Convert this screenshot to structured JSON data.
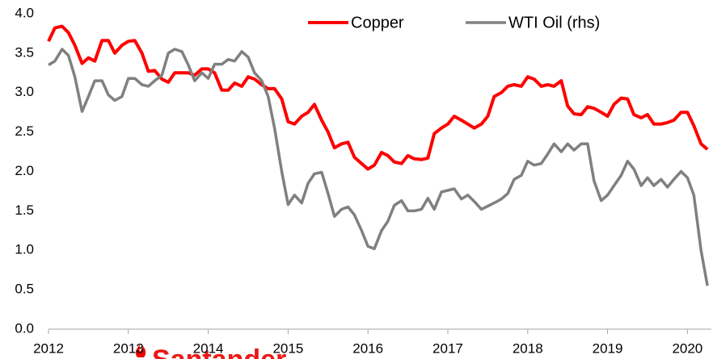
{
  "chart_data": {
    "type": "line",
    "watermark": "Santander",
    "x": [
      2012.0,
      2012.08,
      2012.17,
      2012.25,
      2012.33,
      2012.42,
      2012.5,
      2012.58,
      2012.67,
      2012.75,
      2012.83,
      2012.92,
      2013.0,
      2013.08,
      2013.17,
      2013.25,
      2013.33,
      2013.42,
      2013.5,
      2013.58,
      2013.67,
      2013.75,
      2013.83,
      2013.92,
      2014.0,
      2014.08,
      2014.17,
      2014.25,
      2014.33,
      2014.42,
      2014.5,
      2014.58,
      2014.67,
      2014.75,
      2014.83,
      2014.92,
      2015.0,
      2015.08,
      2015.17,
      2015.25,
      2015.33,
      2015.42,
      2015.5,
      2015.58,
      2015.67,
      2015.75,
      2015.83,
      2015.92,
      2016.0,
      2016.08,
      2016.17,
      2016.25,
      2016.33,
      2016.42,
      2016.5,
      2016.58,
      2016.67,
      2016.75,
      2016.83,
      2016.92,
      2017.0,
      2017.08,
      2017.17,
      2017.25,
      2017.33,
      2017.42,
      2017.5,
      2017.58,
      2017.67,
      2017.75,
      2017.83,
      2017.92,
      2018.0,
      2018.08,
      2018.17,
      2018.25,
      2018.33,
      2018.42,
      2018.5,
      2018.58,
      2018.67,
      2018.75,
      2018.83,
      2018.92,
      2019.0,
      2019.08,
      2019.17,
      2019.25,
      2019.33,
      2019.42,
      2019.5,
      2019.58,
      2019.67,
      2019.75,
      2019.83,
      2019.92,
      2020.0,
      2020.08,
      2020.17,
      2020.25
    ],
    "series": [
      {
        "name": "Copper",
        "color": "#ff0000",
        "values": [
          3.65,
          3.82,
          3.84,
          3.76,
          3.6,
          3.37,
          3.44,
          3.4,
          3.66,
          3.66,
          3.5,
          3.6,
          3.65,
          3.66,
          3.5,
          3.27,
          3.28,
          3.17,
          3.13,
          3.25,
          3.25,
          3.25,
          3.22,
          3.3,
          3.3,
          3.25,
          3.03,
          3.03,
          3.12,
          3.08,
          3.2,
          3.17,
          3.1,
          3.05,
          3.05,
          2.92,
          2.63,
          2.6,
          2.7,
          2.75,
          2.85,
          2.65,
          2.5,
          2.3,
          2.35,
          2.37,
          2.18,
          2.1,
          2.03,
          2.08,
          2.24,
          2.2,
          2.12,
          2.1,
          2.2,
          2.16,
          2.15,
          2.17,
          2.48,
          2.55,
          2.6,
          2.7,
          2.65,
          2.6,
          2.55,
          2.6,
          2.7,
          2.95,
          3.0,
          3.08,
          3.1,
          3.08,
          3.2,
          3.17,
          3.08,
          3.1,
          3.08,
          3.15,
          2.83,
          2.73,
          2.72,
          2.82,
          2.8,
          2.75,
          2.7,
          2.85,
          2.93,
          2.92,
          2.72,
          2.68,
          2.72,
          2.6,
          2.6,
          2.62,
          2.65,
          2.75,
          2.75,
          2.58,
          2.35,
          2.28
        ]
      },
      {
        "name": "WTI Oil (rhs)",
        "color": "#808080",
        "values": [
          3.35,
          3.4,
          3.55,
          3.47,
          3.2,
          2.76,
          2.95,
          3.15,
          3.15,
          2.97,
          2.9,
          2.95,
          3.18,
          3.18,
          3.1,
          3.08,
          3.15,
          3.22,
          3.5,
          3.55,
          3.52,
          3.35,
          3.15,
          3.25,
          3.18,
          3.36,
          3.36,
          3.42,
          3.4,
          3.52,
          3.45,
          3.25,
          3.15,
          2.95,
          2.55,
          2.0,
          1.58,
          1.7,
          1.6,
          1.85,
          1.97,
          1.99,
          1.72,
          1.43,
          1.52,
          1.55,
          1.45,
          1.25,
          1.05,
          1.02,
          1.25,
          1.37,
          1.57,
          1.63,
          1.5,
          1.5,
          1.52,
          1.66,
          1.52,
          1.74,
          1.76,
          1.78,
          1.65,
          1.7,
          1.62,
          1.52,
          1.56,
          1.6,
          1.65,
          1.72,
          1.9,
          1.95,
          2.13,
          2.08,
          2.1,
          2.22,
          2.35,
          2.25,
          2.35,
          2.27,
          2.35,
          2.35,
          1.88,
          1.63,
          1.7,
          1.82,
          1.95,
          2.13,
          2.03,
          1.82,
          1.92,
          1.82,
          1.9,
          1.8,
          1.9,
          2.0,
          1.92,
          1.7,
          1.0,
          0.55
        ]
      }
    ],
    "xlim": [
      2012,
      2020.3
    ],
    "xticks": [
      2012,
      2013,
      2014,
      2015,
      2016,
      2017,
      2018,
      2019,
      2020
    ],
    "ylim": [
      0,
      4
    ],
    "yticks": [
      {
        "value": 0,
        "label": "0.0"
      },
      {
        "value": 0.5,
        "label": "0.5"
      },
      {
        "value": 1,
        "label": "1.0"
      },
      {
        "value": 1.5,
        "label": "1.5"
      },
      {
        "value": 2,
        "label": "2.0"
      },
      {
        "value": 2.5,
        "label": "2.5"
      },
      {
        "value": 3,
        "label": "3.0"
      },
      {
        "value": 3.5,
        "label": "3.5"
      },
      {
        "value": 4,
        "label": "4.0"
      }
    ],
    "legend": "top-right"
  }
}
